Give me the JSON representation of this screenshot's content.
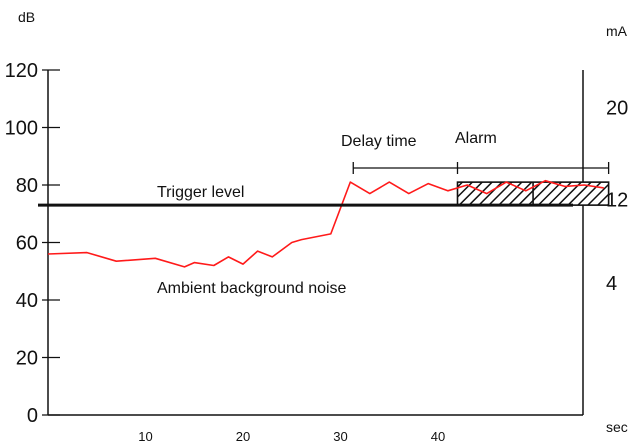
{
  "chart_data": {
    "type": "line",
    "title": "",
    "xlabel": "",
    "ylabel": "",
    "units": {
      "left": "dB",
      "right": "mA",
      "x": "sec"
    },
    "xlim": [
      0,
      58
    ],
    "ylim": [
      0,
      120
    ],
    "grid": false,
    "left_ticks": [
      {
        "value": 0,
        "label": "0"
      },
      {
        "value": 20,
        "label": "20"
      },
      {
        "value": 40,
        "label": "40"
      },
      {
        "value": 60,
        "label": "60"
      },
      {
        "value": 80,
        "label": "80"
      },
      {
        "value": 100,
        "label": "100"
      },
      {
        "value": 120,
        "label": "120"
      }
    ],
    "right_ticks": [
      {
        "value": 20,
        "label": "20",
        "y_db": 107
      },
      {
        "value": 12,
        "label": "12",
        "y_db": 75
      },
      {
        "value": 4,
        "label": "4",
        "y_db": 46
      }
    ],
    "x_ticks": [
      {
        "value": 10,
        "label": "10"
      },
      {
        "value": 20,
        "label": "20"
      },
      {
        "value": 30,
        "label": "30"
      },
      {
        "value": 40,
        "label": "40"
      }
    ],
    "series": [
      {
        "color": "#ff1a1a",
        "x": [
          0,
          4,
          7,
          11,
          14,
          15,
          17,
          18.5,
          20,
          21.5,
          23,
          25,
          26,
          29,
          31,
          33,
          35,
          37,
          39,
          41,
          43,
          45,
          47,
          49,
          51,
          53,
          55,
          57
        ],
        "y": [
          56,
          56.5,
          53.5,
          54.5,
          51.5,
          53,
          52,
          55,
          52.5,
          57,
          55,
          60,
          61,
          63,
          81,
          77,
          81,
          77,
          80.5,
          78,
          80,
          77,
          81,
          78,
          81.5,
          79.5,
          80,
          79
        ]
      }
    ],
    "trigger_level": {
      "value": 73,
      "label": "Trigger level",
      "color": "#111111"
    },
    "annotations": {
      "noise_label": "Ambient background noise",
      "delay_label": "Delay time",
      "alarm_label": "Alarm"
    },
    "delay_interval": [
      31,
      42
    ],
    "alarm_interval": [
      42,
      57.5
    ],
    "alarm_band": [
      73,
      81
    ]
  }
}
